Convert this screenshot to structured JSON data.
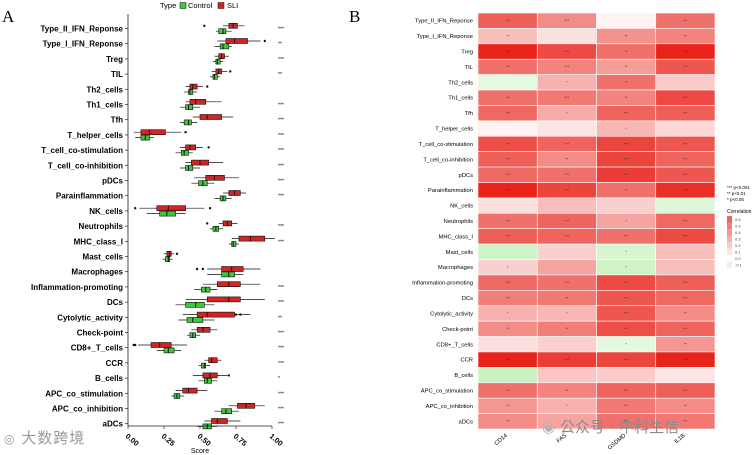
{
  "panels": {
    "a_letter": "A",
    "b_letter": "B"
  },
  "watermarks": {
    "left": "大数跨境",
    "right": "公众号 · 中科生信"
  },
  "chart_data": [
    {
      "type": "boxplot",
      "orientation": "horizontal",
      "legend": {
        "title": "Type",
        "entries": [
          {
            "name": "Control",
            "color": "#3cc83c"
          },
          {
            "name": "SLI",
            "color": "#d22424"
          }
        ],
        "position": "top"
      },
      "xlabel": "Score",
      "xlim": [
        0,
        1
      ],
      "xticks": [
        "0.00",
        "0.25",
        "0.50",
        "0.75",
        "1.00"
      ],
      "xtick_values": [
        0,
        0.25,
        0.5,
        0.75,
        1
      ],
      "categories": [
        {
          "name": "Type_II_IFN_Reponse",
          "sig": "***",
          "sli": [
            0.66,
            0.7,
            0.73,
            0.76,
            0.81
          ],
          "ctrl": [
            0.61,
            0.63,
            0.66,
            0.68,
            0.72
          ],
          "out": [
            0.53
          ]
        },
        {
          "name": "Type_I_IFN_Reponse",
          "sig": "**",
          "sli": [
            0.62,
            0.68,
            0.74,
            0.83,
            0.92
          ],
          "ctrl": [
            0.6,
            0.64,
            0.66,
            0.7,
            0.72
          ],
          "out": [
            0.95
          ]
        },
        {
          "name": "Treg",
          "sig": "***",
          "sli": [
            0.6,
            0.63,
            0.65,
            0.67,
            0.7
          ],
          "ctrl": [
            0.59,
            0.61,
            0.62,
            0.64,
            0.66
          ],
          "out": []
        },
        {
          "name": "TIL",
          "sig": "**",
          "sli": [
            0.58,
            0.61,
            0.63,
            0.65,
            0.69
          ],
          "ctrl": [
            0.57,
            0.59,
            0.6,
            0.62,
            0.64
          ],
          "out": [
            0.71
          ]
        },
        {
          "name": "Th2_cells",
          "sig": "",
          "sli": [
            0.4,
            0.43,
            0.45,
            0.48,
            0.52
          ],
          "ctrl": [
            0.39,
            0.42,
            0.43,
            0.45,
            0.48
          ],
          "out": [
            0.55
          ]
        },
        {
          "name": "Th1_cells",
          "sig": "***",
          "sli": [
            0.4,
            0.43,
            0.47,
            0.54,
            0.65
          ],
          "ctrl": [
            0.36,
            0.4,
            0.42,
            0.45,
            0.5
          ],
          "out": []
        },
        {
          "name": "Tfh",
          "sig": "***",
          "sli": [
            0.45,
            0.5,
            0.55,
            0.65,
            0.73
          ],
          "ctrl": [
            0.36,
            0.39,
            0.42,
            0.44,
            0.48
          ],
          "out": []
        },
        {
          "name": "T_helper_cells",
          "sig": "***",
          "sli": [
            0.04,
            0.09,
            0.15,
            0.26,
            0.37
          ],
          "ctrl": [
            0.05,
            0.09,
            0.12,
            0.15,
            0.18
          ],
          "out": [
            0.4
          ]
        },
        {
          "name": "T_cell_co-stimulation",
          "sig": "***",
          "sli": [
            0.36,
            0.4,
            0.43,
            0.47,
            0.52
          ],
          "ctrl": [
            0.33,
            0.37,
            0.39,
            0.42,
            0.45
          ],
          "out": [
            0.56
          ]
        },
        {
          "name": "T_cell_co-inhibition",
          "sig": "***",
          "sli": [
            0.4,
            0.44,
            0.5,
            0.56,
            0.66
          ],
          "ctrl": [
            0.36,
            0.4,
            0.42,
            0.45,
            0.5
          ],
          "out": []
        },
        {
          "name": "pDCs",
          "sig": "***",
          "sli": [
            0.46,
            0.54,
            0.6,
            0.67,
            0.77
          ],
          "ctrl": [
            0.44,
            0.49,
            0.52,
            0.55,
            0.6
          ],
          "out": []
        },
        {
          "name": "Parainflammation",
          "sig": "***",
          "sli": [
            0.66,
            0.7,
            0.74,
            0.78,
            0.82
          ],
          "ctrl": [
            0.6,
            0.64,
            0.66,
            0.68,
            0.72
          ],
          "out": []
        },
        {
          "name": "NK_cells",
          "sig": "",
          "sli": [
            0.08,
            0.2,
            0.28,
            0.4,
            0.53
          ],
          "ctrl": [
            0.13,
            0.22,
            0.27,
            0.33,
            0.4
          ],
          "out": [
            0.05,
            0.57
          ]
        },
        {
          "name": "Neutrophils",
          "sig": "***",
          "sli": [
            0.63,
            0.66,
            0.69,
            0.72,
            0.76
          ],
          "ctrl": [
            0.57,
            0.59,
            0.61,
            0.63,
            0.66
          ],
          "out": [
            0.55
          ]
        },
        {
          "name": "MHC_class_I",
          "sig": "***",
          "sli": [
            0.72,
            0.77,
            0.85,
            0.95,
            1.02
          ],
          "ctrl": [
            0.7,
            0.72,
            0.73,
            0.75,
            0.77
          ],
          "out": []
        },
        {
          "name": "Mast_cells",
          "sig": "",
          "sli": [
            0.25,
            0.27,
            0.29,
            0.3,
            0.32
          ],
          "ctrl": [
            0.24,
            0.26,
            0.28,
            0.29,
            0.31
          ],
          "out": [
            0.34
          ]
        },
        {
          "name": "Macrophages",
          "sig": "",
          "sli": [
            0.55,
            0.65,
            0.72,
            0.8,
            0.92
          ],
          "ctrl": [
            0.55,
            0.65,
            0.7,
            0.74,
            0.8
          ],
          "out": [
            0.48,
            0.52
          ]
        },
        {
          "name": "Inflammation-promoting",
          "sig": "***",
          "sli": [
            0.52,
            0.62,
            0.7,
            0.78,
            0.92
          ],
          "ctrl": [
            0.46,
            0.51,
            0.54,
            0.57,
            0.62
          ],
          "out": []
        },
        {
          "name": "DCs",
          "sig": "***",
          "sli": [
            0.4,
            0.55,
            0.7,
            0.78,
            0.95
          ],
          "ctrl": [
            0.33,
            0.4,
            0.47,
            0.53,
            0.6
          ],
          "out": []
        },
        {
          "name": "Cytolytic_activity",
          "sig": "**",
          "sli": [
            0.38,
            0.48,
            0.55,
            0.74,
            0.85
          ],
          "ctrl": [
            0.35,
            0.41,
            0.45,
            0.52,
            0.6
          ],
          "out": [
            0.75,
            0.78
          ]
        },
        {
          "name": "Check-point",
          "sig": "***",
          "sli": [
            0.44,
            0.48,
            0.52,
            0.57,
            0.62
          ],
          "ctrl": [
            0.41,
            0.43,
            0.45,
            0.47,
            0.5
          ],
          "out": []
        },
        {
          "name": "CD8+_T_cells",
          "sig": "***",
          "sli": [
            0.07,
            0.16,
            0.22,
            0.3,
            0.41
          ],
          "ctrl": [
            0.2,
            0.25,
            0.28,
            0.32,
            0.37
          ],
          "out": [
            0.04,
            0.05
          ]
        },
        {
          "name": "CCR",
          "sig": "***",
          "sli": [
            0.53,
            0.56,
            0.58,
            0.62,
            0.65
          ],
          "ctrl": [
            0.49,
            0.51,
            0.53,
            0.54,
            0.57
          ],
          "out": []
        },
        {
          "name": "B_cells",
          "sig": "*",
          "sli": [
            0.45,
            0.52,
            0.57,
            0.62,
            0.69
          ],
          "ctrl": [
            0.49,
            0.53,
            0.55,
            0.58,
            0.62
          ],
          "out": [
            0.7
          ]
        },
        {
          "name": "APC_co_stimulation",
          "sig": "***",
          "sli": [
            0.33,
            0.38,
            0.42,
            0.48,
            0.55
          ],
          "ctrl": [
            0.3,
            0.32,
            0.34,
            0.36,
            0.39
          ],
          "out": []
        },
        {
          "name": "APC_co_inhibition",
          "sig": "***",
          "sli": [
            0.7,
            0.76,
            0.82,
            0.88,
            0.95
          ],
          "ctrl": [
            0.6,
            0.65,
            0.68,
            0.72,
            0.77
          ],
          "out": []
        },
        {
          "name": "aDCs",
          "sig": "***",
          "sli": [
            0.53,
            0.58,
            0.62,
            0.69,
            0.78
          ],
          "ctrl": [
            0.48,
            0.52,
            0.55,
            0.58,
            0.62
          ],
          "out": []
        }
      ]
    },
    {
      "type": "heatmap",
      "columns": [
        "CD14",
        "FAS",
        "GSDMD",
        "IL1B"
      ],
      "rows": [
        "Type_II_IFN_Reponse",
        "Type_I_IFN_Reponse",
        "Treg",
        "TIL",
        "Th2_cells",
        "Th1_cells",
        "Tfh",
        "T_helper_cells",
        "T_cell_co-stimulation",
        "T_cell_co-inhibition",
        "pDCs",
        "Parainflammation",
        "NK_cells",
        "Neutrophils",
        "MHC_class_I",
        "Mast_cells",
        "Macrophages",
        "Inflammation-promoting",
        "DCs",
        "Cytolytic_activity",
        "Check-point",
        "CD8+_T_cells",
        "CCR",
        "B_cells",
        "APC_co_stimulation",
        "APC_co_inhibition",
        "aDCs"
      ],
      "values": [
        [
          0.62,
          0.45,
          0.05,
          0.55
        ],
        [
          0.25,
          0.12,
          0.42,
          0.48
        ],
        [
          0.95,
          0.7,
          0.55,
          0.85
        ],
        [
          0.55,
          0.48,
          0.38,
          0.65
        ],
        [
          -0.1,
          0.3,
          0.55,
          0.2
        ],
        [
          0.55,
          0.52,
          0.48,
          0.7
        ],
        [
          0.58,
          0.32,
          0.6,
          0.62
        ],
        [
          0.05,
          0.1,
          0.28,
          0.15
        ],
        [
          0.68,
          0.6,
          0.72,
          0.65
        ],
        [
          0.62,
          0.45,
          0.72,
          0.6
        ],
        [
          0.58,
          0.55,
          0.75,
          0.65
        ],
        [
          0.85,
          0.72,
          0.55,
          0.8
        ],
        [
          0.12,
          0.25,
          0.18,
          -0.12
        ],
        [
          0.55,
          0.6,
          0.35,
          0.58
        ],
        [
          0.62,
          0.6,
          0.55,
          0.7
        ],
        [
          -0.18,
          0.18,
          -0.15,
          0.25
        ],
        [
          0.18,
          0.35,
          -0.18,
          0.25
        ],
        [
          0.58,
          0.55,
          0.7,
          0.62
        ],
        [
          0.5,
          0.52,
          0.65,
          0.58
        ],
        [
          0.3,
          0.28,
          0.65,
          0.45
        ],
        [
          0.45,
          0.5,
          0.68,
          0.6
        ],
        [
          0.12,
          0.18,
          -0.1,
          0.4
        ],
        [
          0.88,
          0.75,
          0.72,
          0.88
        ],
        [
          -0.2,
          0.22,
          0.2,
          0.1
        ],
        [
          0.55,
          0.48,
          0.6,
          0.62
        ],
        [
          0.4,
          0.3,
          0.52,
          0.45
        ],
        [
          0.45,
          0.35,
          0.55,
          0.52
        ]
      ],
      "stars": [
        [
          "***",
          "***",
          "",
          "***"
        ],
        [
          "**",
          "",
          "**",
          "**"
        ],
        [
          "***",
          "***",
          "**",
          "***"
        ],
        [
          "***",
          "***",
          "**",
          "***"
        ],
        [
          "",
          "*",
          "**",
          ""
        ],
        [
          "***",
          "***",
          "**",
          "***"
        ],
        [
          "***",
          "*",
          "***",
          "***"
        ],
        [
          "",
          "",
          "*",
          ""
        ],
        [
          "***",
          "***",
          "***",
          "***"
        ],
        [
          "***",
          "**",
          "***",
          "***"
        ],
        [
          "***",
          "***",
          "***",
          "***"
        ],
        [
          "***",
          "***",
          "**",
          "***"
        ],
        [
          "",
          "",
          "",
          ""
        ],
        [
          "***",
          "***",
          "*",
          "***"
        ],
        [
          "***",
          "***",
          "***",
          "***"
        ],
        [
          "",
          "",
          "*",
          ""
        ],
        [
          "*",
          "",
          "*",
          ""
        ],
        [
          "***",
          "***",
          "***",
          "***"
        ],
        [
          "***",
          "**",
          "***",
          "***"
        ],
        [
          "*",
          "*",
          "***",
          "**"
        ],
        [
          "**",
          "**",
          "***",
          "***"
        ],
        [
          "",
          "",
          "*",
          "**"
        ],
        [
          "***",
          "***",
          "***",
          "***"
        ],
        [
          "",
          "",
          "",
          ""
        ],
        [
          "***",
          "**",
          "***",
          "***"
        ],
        [
          "**",
          "*",
          "***",
          "**"
        ],
        [
          "**",
          "*",
          "***",
          "***"
        ]
      ],
      "sig_legend": [
        "*** p<0.001",
        "** p<0.01",
        "* p<0.05"
      ],
      "colorbar": {
        "title": "Correlation",
        "ticks": [
          "0.6",
          "0.5",
          "0.4",
          "0.3",
          "0.2",
          "0.1",
          "0.0",
          "-0.1"
        ]
      },
      "colors": {
        "high": "#e8231a",
        "zero": "#ffffff",
        "low": "#c9f2c0"
      }
    }
  ]
}
